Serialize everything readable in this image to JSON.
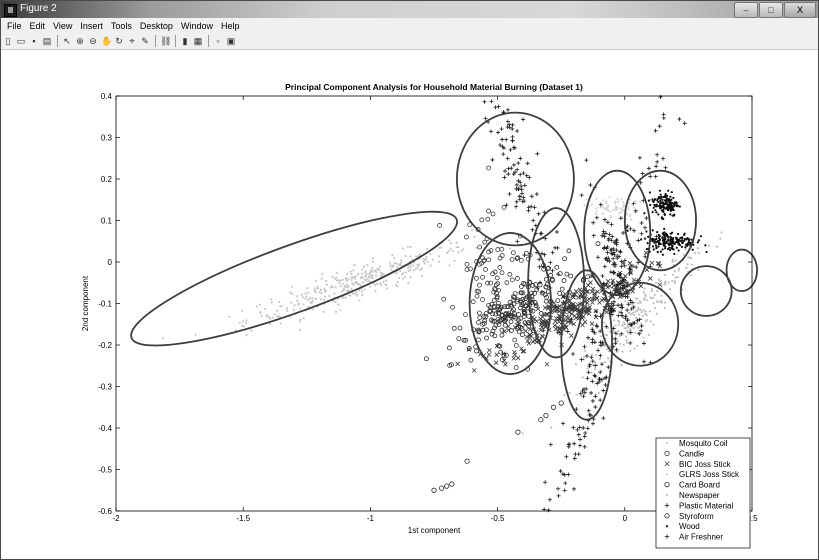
{
  "window": {
    "title": "Figure 2",
    "controls": {
      "minimize": "–",
      "maximize": "□",
      "close": "X"
    }
  },
  "menu": [
    "File",
    "Edit",
    "View",
    "Insert",
    "Tools",
    "Desktop",
    "Window",
    "Help"
  ],
  "toolbar": [
    "new-icon",
    "open-icon",
    "save-icon",
    "print-icon",
    "sep",
    "pointer-icon",
    "zoom-in-icon",
    "zoom-out-icon",
    "pan-icon",
    "rotate-icon",
    "data-cursor-icon",
    "brush-icon",
    "sep",
    "link-icon",
    "sep",
    "colorbar-icon",
    "legend-icon",
    "sep",
    "hide-plot-tools-icon",
    "show-plot-tools-icon"
  ],
  "colors": {
    "ellipse": "#3d3d3d",
    "dark": "#1a1a1a",
    "mid": "#5a5a5a",
    "light": "#c4c4c4",
    "lighter": "#d6d6d6"
  },
  "chart_data": {
    "type": "scatter",
    "title": "Principal Component Analysis for Household Material Burning (Dataset 1)",
    "xlabel": "1st component",
    "ylabel": "2nd component",
    "xlim": [
      -2,
      0.5
    ],
    "ylim": [
      -0.6,
      0.4
    ],
    "xticks": [
      -2,
      -1.5,
      -1,
      -0.5,
      0,
      0.5
    ],
    "yticks": [
      -0.6,
      -0.5,
      -0.4,
      -0.3,
      -0.2,
      -0.1,
      0,
      0.1,
      0.2,
      0.3,
      0.4
    ],
    "legend_position": "bottom-right",
    "series": [
      {
        "name": "Mosquito Coil",
        "marker": "dot",
        "color": "#c8c8c8",
        "clusters": [
          {
            "cx": -1.05,
            "cy": -0.05,
            "sx": 0.22,
            "sy": 0.02,
            "rho": 0.75,
            "n": 360
          }
        ]
      },
      {
        "name": "Candle",
        "marker": "circle",
        "color": "#3a3a3a",
        "clusters": [
          {
            "cx": -0.5,
            "cy": -0.08,
            "sx": 0.08,
            "sy": 0.09,
            "rho": -0.1,
            "n": 110
          }
        ]
      },
      {
        "name": "BIC Joss Stick",
        "marker": "x",
        "color": "#3a3a3a",
        "clusters": [
          {
            "cx": -0.22,
            "cy": -0.12,
            "sx": 0.15,
            "sy": 0.025,
            "rho": 0.6,
            "n": 300
          }
        ]
      },
      {
        "name": "GLRS Joss Stick",
        "marker": "dot",
        "color": "#d6d6d6",
        "clusters": [
          {
            "cx": -0.05,
            "cy": 0.13,
            "sx": 0.05,
            "sy": 0.015,
            "rho": 0,
            "n": 80
          }
        ]
      },
      {
        "name": "Card Board",
        "marker": "circle",
        "color": "#2a2a2a",
        "clusters": [
          {
            "cx": -0.42,
            "cy": -0.11,
            "sx": 0.12,
            "sy": 0.03,
            "rho": 0.5,
            "n": 160
          }
        ]
      },
      {
        "name": "Newspaper",
        "marker": "dot",
        "color": "#c0c0c0",
        "clusters": [
          {
            "cx": 0.05,
            "cy": -0.13,
            "sx": 0.12,
            "sy": 0.03,
            "rho": 0.85,
            "n": 240
          }
        ]
      },
      {
        "name": "Plastic Material",
        "marker": "plus",
        "color": "#1a1a1a",
        "clusters": [
          {
            "cx": -0.43,
            "cy": 0.22,
            "sx": 0.1,
            "sy": 0.07,
            "rho": -0.9,
            "n": 150
          },
          {
            "cx": -0.1,
            "cy": -0.22,
            "sx": 0.12,
            "sy": 0.08,
            "rho": 0.95,
            "n": 200
          }
        ]
      },
      {
        "name": "Styroform",
        "marker": "circle",
        "color": "#2a2a2a",
        "points": [
          [
            -0.75,
            -0.55
          ],
          [
            -0.72,
            -0.545
          ],
          [
            -0.7,
            -0.54
          ],
          [
            -0.68,
            -0.535
          ],
          [
            -0.62,
            -0.48
          ],
          [
            -0.42,
            -0.41
          ],
          [
            -0.33,
            -0.38
          ],
          [
            -0.31,
            -0.37
          ],
          [
            -0.28,
            -0.35
          ],
          [
            -0.25,
            -0.34
          ]
        ]
      },
      {
        "name": "Wood",
        "marker": "dot",
        "color": "#0e0e0e",
        "clusters": [
          {
            "cx": 0.16,
            "cy": 0.14,
            "sx": 0.025,
            "sy": 0.015,
            "rho": 0,
            "n": 140
          },
          {
            "cx": 0.18,
            "cy": 0.05,
            "sx": 0.05,
            "sy": 0.012,
            "rho": 0,
            "n": 180
          }
        ]
      },
      {
        "name": "Air Freshner",
        "marker": "plus",
        "color": "#1a1a1a",
        "clusters": [
          {
            "cx": -0.03,
            "cy": -0.02,
            "sx": 0.05,
            "sy": 0.04,
            "rho": -0.7,
            "n": 110
          }
        ]
      }
    ],
    "ellipses": [
      {
        "cx": -1.3,
        "cy": -0.04,
        "rx": 0.68,
        "ry": 0.08,
        "angle_deg": 20
      },
      {
        "cx": -0.43,
        "cy": 0.2,
        "rx": 0.23,
        "ry": 0.16,
        "angle_deg": 0
      },
      {
        "cx": -0.45,
        "cy": -0.1,
        "rx": 0.16,
        "ry": 0.17,
        "angle_deg": 0
      },
      {
        "cx": -0.27,
        "cy": -0.05,
        "rx": 0.11,
        "ry": 0.18,
        "angle_deg": 0
      },
      {
        "cx": -0.15,
        "cy": -0.2,
        "rx": 0.1,
        "ry": 0.18,
        "angle_deg": 0
      },
      {
        "cx": -0.03,
        "cy": 0.07,
        "rx": 0.13,
        "ry": 0.15,
        "angle_deg": 0
      },
      {
        "cx": 0.14,
        "cy": 0.1,
        "rx": 0.14,
        "ry": 0.12,
        "angle_deg": 0
      },
      {
        "cx": 0.06,
        "cy": -0.15,
        "rx": 0.15,
        "ry": 0.1,
        "angle_deg": 0
      },
      {
        "cx": 0.32,
        "cy": -0.07,
        "rx": 0.1,
        "ry": 0.06,
        "angle_deg": 0
      },
      {
        "cx": 0.46,
        "cy": -0.02,
        "rx": 0.06,
        "ry": 0.05,
        "angle_deg": 0
      }
    ]
  }
}
